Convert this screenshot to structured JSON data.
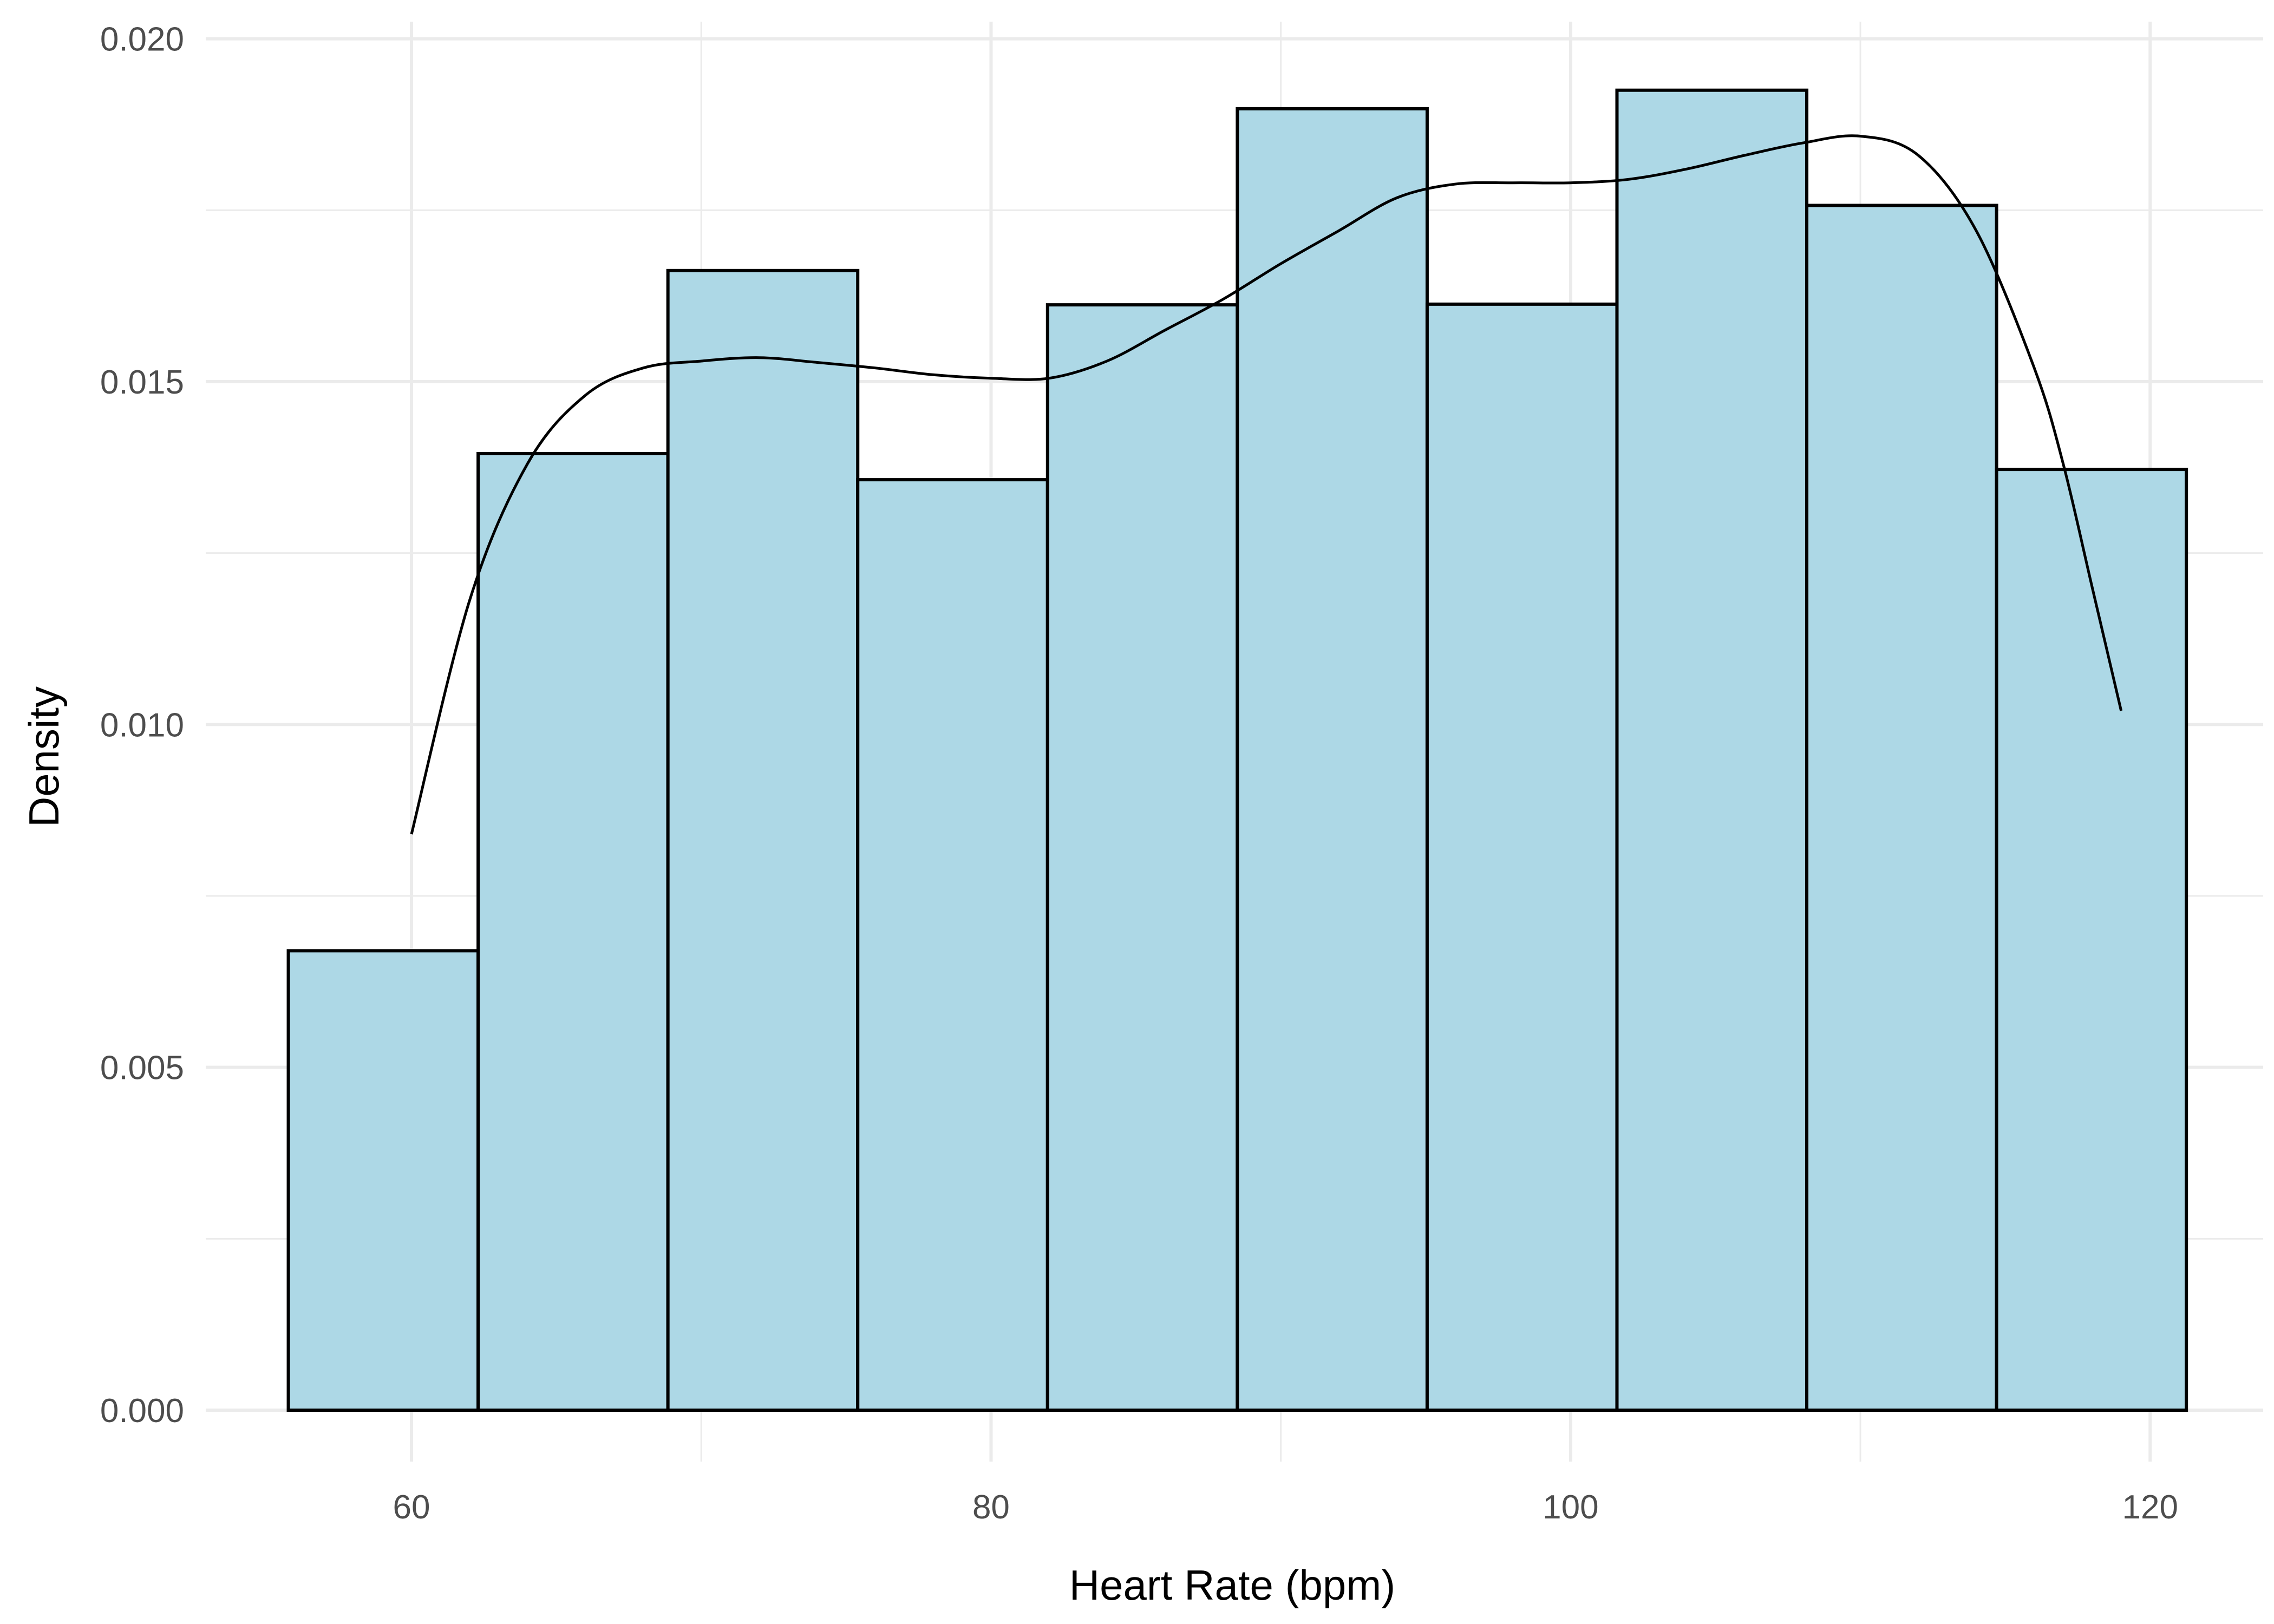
{
  "chart_data": {
    "type": "bar",
    "title": "",
    "xlabel": "Heart Rate (bpm)",
    "ylabel": "Density",
    "xlim": [
      52.9,
      123.9
    ],
    "ylim": [
      -0.00075,
      0.02025
    ],
    "x_ticks": [
      60,
      80,
      100,
      120
    ],
    "y_ticks": [
      0.0,
      0.005,
      0.01,
      0.015,
      0.02
    ],
    "y_tick_labels": [
      "0.000",
      "0.005",
      "0.010",
      "0.015",
      "0.020"
    ],
    "grid": true,
    "legend": "none",
    "bins": [
      {
        "x0": 55.75,
        "x1": 62.3,
        "value": 0.0067
      },
      {
        "x0": 62.3,
        "x1": 68.85,
        "value": 0.01395
      },
      {
        "x0": 68.85,
        "x1": 75.4,
        "value": 0.01662
      },
      {
        "x0": 75.4,
        "x1": 81.95,
        "value": 0.01357
      },
      {
        "x0": 81.95,
        "x1": 88.5,
        "value": 0.01612
      },
      {
        "x0": 88.5,
        "x1": 95.05,
        "value": 0.01898
      },
      {
        "x0": 95.05,
        "x1": 101.6,
        "value": 0.01613
      },
      {
        "x0": 101.6,
        "x1": 108.15,
        "value": 0.01925
      },
      {
        "x0": 108.15,
        "x1": 114.7,
        "value": 0.01757
      },
      {
        "x0": 114.7,
        "x1": 121.25,
        "value": 0.01372
      }
    ],
    "density_curve": {
      "x": [
        60,
        62,
        64,
        66,
        68,
        70,
        72,
        74,
        76,
        78,
        80,
        82,
        84,
        86,
        88,
        90,
        92,
        94,
        96,
        98,
        100,
        102,
        104,
        106,
        108,
        110,
        112,
        114,
        116,
        117,
        118,
        119
      ],
      "y": [
        0.0084,
        0.0118,
        0.0138,
        0.0148,
        0.0152,
        0.0153,
        0.01535,
        0.01528,
        0.0152,
        0.0151,
        0.01505,
        0.01505,
        0.0153,
        0.01575,
        0.0162,
        0.01672,
        0.0172,
        0.01768,
        0.01788,
        0.0179,
        0.0179,
        0.01795,
        0.0181,
        0.0183,
        0.01848,
        0.01858,
        0.0183,
        0.0172,
        0.0152,
        0.0138,
        0.012,
        0.0102
      ]
    },
    "colors": {
      "bar_fill": "#add8e6",
      "bar_outline": "#000000",
      "density_line": "#000000",
      "grid": "#ebebeb"
    }
  }
}
